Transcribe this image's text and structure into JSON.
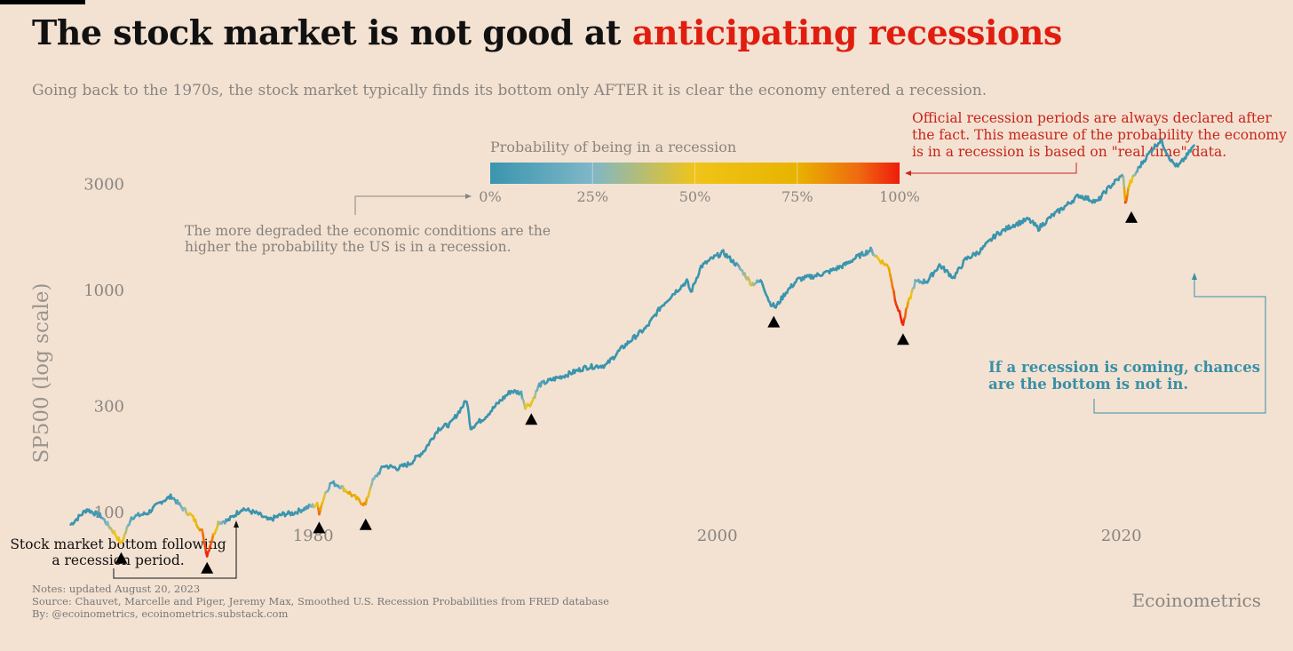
{
  "title": {
    "main": "The stock market is not good at ",
    "accent": "anticipating recessions"
  },
  "subtitle": "Going back to the 1970s, the stock market typically finds its bottom only AFTER it is clear the economy entered a recession.",
  "legend": {
    "title": "Probability of being in a recession",
    "ticks": [
      "0%",
      "25%",
      "50%",
      "75%",
      "100%"
    ],
    "tick_values": [
      0,
      0.25,
      0.5,
      0.75,
      1.0
    ]
  },
  "annotations": {
    "official": [
      "Official recession periods are always declared after",
      "the fact. This measure of the probability the economy",
      "is in a recession is based on \"real time\" data."
    ],
    "degraded": [
      "The more degraded the economic conditions are the",
      "higher the probability the US is in a recession."
    ],
    "coming": [
      "If a recession is coming, chances",
      "are the bottom is not in."
    ],
    "bottom": [
      "Stock market bottom following",
      "a recession period."
    ]
  },
  "notes": [
    "Notes: updated August 20, 2023",
    "Source: Chauvet, Marcelle and Piger, Jeremy Max, Smoothed U.S. Recession Probabilities from FRED database",
    "By: @ecoinometrics, ecoinometrics.substack.com"
  ],
  "brand": "Ecoinometrics",
  "colors": {
    "line": "#3a95ae",
    "recession_low": "#f0c419",
    "recession_high": "#e8200e",
    "accent": "#e01e10"
  },
  "chart_data": {
    "type": "line",
    "ylabel": "SP500 (log scale)",
    "yscale": "log",
    "xlim": [
      1964.5,
      2028.5
    ],
    "ylim": [
      50,
      5200
    ],
    "x_ticks": [
      1980,
      2000,
      2020
    ],
    "y_ticks": [
      100,
      300,
      1000,
      3000
    ],
    "series": [
      {
        "points": [
          [
            1968.0,
            88,
            0
          ],
          [
            1968.8,
            103,
            0
          ],
          [
            1969.5,
            96,
            0.05
          ],
          [
            1970.2,
            80,
            0.5
          ],
          [
            1970.5,
            72,
            0.6
          ],
          [
            1971.0,
            95,
            0.1
          ],
          [
            1971.8,
            99,
            0
          ],
          [
            1972.5,
            112,
            0
          ],
          [
            1973.0,
            118,
            0
          ],
          [
            1973.5,
            105,
            0.2
          ],
          [
            1974.0,
            96,
            0.55
          ],
          [
            1974.5,
            82,
            0.85
          ],
          [
            1974.75,
            64,
            1.0
          ],
          [
            1975.0,
            76,
            0.9
          ],
          [
            1975.3,
            90,
            0.4
          ],
          [
            1975.8,
            92,
            0
          ],
          [
            1976.5,
            104,
            0
          ],
          [
            1977.3,
            98,
            0
          ],
          [
            1977.8,
            92,
            0
          ],
          [
            1978.5,
            98,
            0
          ],
          [
            1979.0,
            99,
            0
          ],
          [
            1979.8,
            106,
            0.05
          ],
          [
            1980.2,
            108,
            0.55
          ],
          [
            1980.3,
            100,
            0.95
          ],
          [
            1980.6,
            122,
            0.4
          ],
          [
            1980.9,
            136,
            0.05
          ],
          [
            1981.3,
            132,
            0.1
          ],
          [
            1981.8,
            122,
            0.8
          ],
          [
            1982.2,
            114,
            0.75
          ],
          [
            1982.6,
            108,
            0.85
          ],
          [
            1982.9,
            136,
            0.3
          ],
          [
            1983.5,
            162,
            0
          ],
          [
            1984.2,
            158,
            0
          ],
          [
            1984.8,
            166,
            0
          ],
          [
            1985.5,
            190,
            0
          ],
          [
            1986.2,
            238,
            0
          ],
          [
            1986.8,
            250,
            0
          ],
          [
            1987.6,
            320,
            0
          ],
          [
            1987.8,
            240,
            0
          ],
          [
            1988.5,
            268,
            0
          ],
          [
            1989.3,
            320,
            0
          ],
          [
            1989.8,
            352,
            0
          ],
          [
            1990.3,
            345,
            0.05
          ],
          [
            1990.5,
            300,
            0.45
          ],
          [
            1990.8,
            310,
            0.6
          ],
          [
            1991.2,
            375,
            0.1
          ],
          [
            1991.8,
            395,
            0
          ],
          [
            1992.5,
            415,
            0
          ],
          [
            1993.5,
            450,
            0
          ],
          [
            1994.5,
            460,
            0
          ],
          [
            1995.2,
            540,
            0
          ],
          [
            1995.9,
            615,
            0
          ],
          [
            1996.5,
            680,
            0
          ],
          [
            1997.2,
            840,
            0
          ],
          [
            1997.8,
            960,
            0
          ],
          [
            1998.5,
            1100,
            0
          ],
          [
            1998.7,
            980,
            0
          ],
          [
            1999.2,
            1280,
            0
          ],
          [
            1999.8,
            1400,
            0
          ],
          [
            2000.3,
            1480,
            0
          ],
          [
            2000.9,
            1320,
            0
          ],
          [
            2001.3,
            1200,
            0.3
          ],
          [
            2001.7,
            1070,
            0.45
          ],
          [
            2002.2,
            1100,
            0
          ],
          [
            2002.6,
            880,
            0
          ],
          [
            2002.9,
            840,
            0
          ],
          [
            2003.4,
            980,
            0
          ],
          [
            2004.0,
            1120,
            0
          ],
          [
            2004.8,
            1160,
            0
          ],
          [
            2005.5,
            1210,
            0
          ],
          [
            2006.3,
            1300,
            0
          ],
          [
            2006.9,
            1410,
            0
          ],
          [
            2007.6,
            1520,
            0.05
          ],
          [
            2008.0,
            1380,
            0.55
          ],
          [
            2008.5,
            1270,
            0.75
          ],
          [
            2008.8,
            920,
            0.95
          ],
          [
            2009.2,
            700,
            1.0
          ],
          [
            2009.4,
            840,
            0.85
          ],
          [
            2009.8,
            1090,
            0.2
          ],
          [
            2010.4,
            1100,
            0
          ],
          [
            2011.0,
            1300,
            0
          ],
          [
            2011.7,
            1140,
            0
          ],
          [
            2012.3,
            1380,
            0
          ],
          [
            2013.0,
            1500,
            0
          ],
          [
            2013.8,
            1780,
            0
          ],
          [
            2014.6,
            1960,
            0
          ],
          [
            2015.4,
            2090,
            0
          ],
          [
            2015.9,
            1900,
            0
          ],
          [
            2016.5,
            2140,
            0
          ],
          [
            2017.2,
            2380,
            0
          ],
          [
            2017.9,
            2680,
            0
          ],
          [
            2018.8,
            2500,
            0
          ],
          [
            2019.3,
            2850,
            0
          ],
          [
            2019.8,
            3150,
            0
          ],
          [
            2020.1,
            3300,
            0.1
          ],
          [
            2020.2,
            2450,
            1.0
          ],
          [
            2020.4,
            3000,
            0.7
          ],
          [
            2020.9,
            3600,
            0
          ],
          [
            2021.5,
            4300,
            0
          ],
          [
            2021.95,
            4750,
            0
          ],
          [
            2022.5,
            3800,
            0
          ],
          [
            2022.8,
            3600,
            0
          ],
          [
            2023.3,
            4100,
            0
          ],
          [
            2023.6,
            4500,
            0
          ]
        ]
      }
    ],
    "bottoms": [
      [
        1970.5,
        62
      ],
      [
        1974.75,
        56
      ],
      [
        1980.3,
        85
      ],
      [
        1982.6,
        88
      ],
      [
        1990.8,
        262
      ],
      [
        2002.8,
        720
      ],
      [
        2009.2,
        600
      ],
      [
        2020.5,
        2130
      ]
    ]
  }
}
